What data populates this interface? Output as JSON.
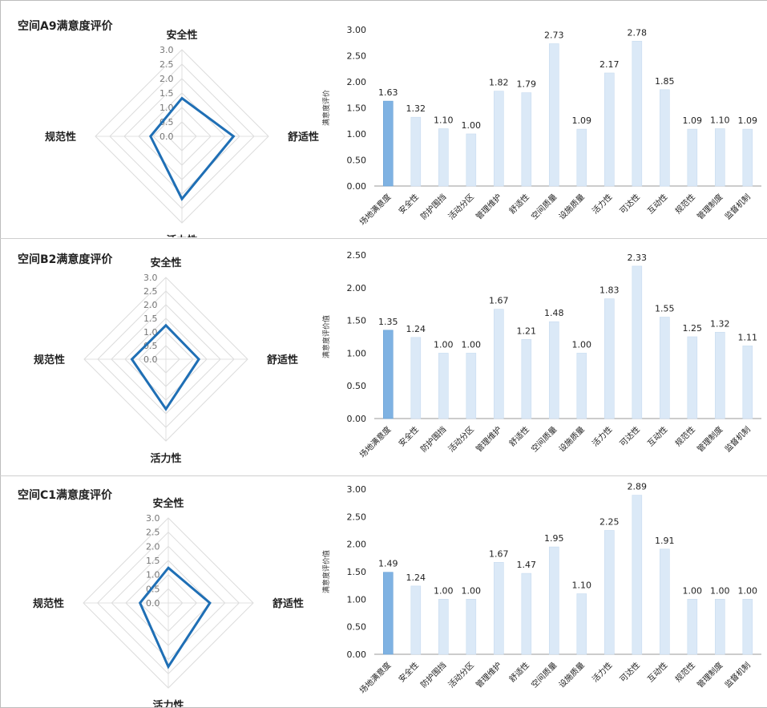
{
  "panels": [
    {
      "title": "空间A9满意度评价",
      "chart_data": [
        {
          "type": "radar",
          "axes": [
            "安全性",
            "舒适性",
            "活力性",
            "规范性"
          ],
          "ticks": [
            "3.0",
            "2.5",
            "2.0",
            "1.5",
            "1.0",
            "0.5",
            "0.0"
          ],
          "rmax": 3.0,
          "values": [
            1.32,
            1.79,
            2.17,
            1.09
          ],
          "color": "#1f6fb5"
        },
        {
          "type": "bar",
          "ylabel": "满意度评价",
          "yticks": [
            "3.00",
            "2.50",
            "2.00",
            "1.50",
            "1.00",
            "0.50",
            "0.00"
          ],
          "ylim": [
            0,
            3.0
          ],
          "categories": [
            "场地满意度",
            "安全性",
            "防护围挡",
            "活动分区",
            "管理维护",
            "舒适性",
            "空间质量",
            "设施质量",
            "活力性",
            "可达性",
            "互动性",
            "规范性",
            "管理制度",
            "监督机制"
          ],
          "values": [
            1.63,
            1.32,
            1.1,
            1.0,
            1.82,
            1.79,
            2.73,
            1.09,
            2.17,
            2.78,
            1.85,
            1.09,
            1.1,
            1.09
          ],
          "labels": [
            "1.63",
            "1.32",
            "1.10",
            "1.00",
            "1.82",
            "1.79",
            "2.73",
            "1.09",
            "2.17",
            "2.78",
            "1.85",
            "1.09",
            "1.10",
            "1.09"
          ]
        }
      ]
    },
    {
      "title": "空间B2满意度评价",
      "chart_data": [
        {
          "type": "radar",
          "axes": [
            "安全性",
            "舒适性",
            "活力性",
            "规范性"
          ],
          "ticks": [
            "3.0",
            "2.5",
            "2.0",
            "1.5",
            "1.0",
            "0.5",
            "0.0"
          ],
          "rmax": 3.0,
          "values": [
            1.24,
            1.21,
            1.83,
            1.25
          ],
          "color": "#1f6fb5"
        },
        {
          "type": "bar",
          "ylabel": "满意度评价值",
          "yticks": [
            "2.50",
            "2.00",
            "1.50",
            "1.00",
            "0.50",
            "0.00"
          ],
          "ylim": [
            0,
            2.5
          ],
          "categories": [
            "场地满意度",
            "安全性",
            "防护围挡",
            "活动分区",
            "管理维护",
            "舒适性",
            "空间质量",
            "设施质量",
            "活力性",
            "可达性",
            "互动性",
            "规范性",
            "管理制度",
            "监督机制"
          ],
          "values": [
            1.35,
            1.24,
            1.0,
            1.0,
            1.67,
            1.21,
            1.48,
            1.0,
            1.83,
            2.33,
            1.55,
            1.25,
            1.32,
            1.11
          ],
          "labels": [
            "1.35",
            "1.24",
            "1.00",
            "1.00",
            "1.67",
            "1.21",
            "1.48",
            "1.00",
            "1.83",
            "2.33",
            "1.55",
            "1.25",
            "1.32",
            "1.11"
          ]
        }
      ]
    },
    {
      "title": "空间C1满意度评价",
      "chart_data": [
        {
          "type": "radar",
          "axes": [
            "安全性",
            "舒适性",
            "活力性",
            "规范性"
          ],
          "ticks": [
            "3.0",
            "2.5",
            "2.0",
            "1.5",
            "1.0",
            "0.5",
            "0.0"
          ],
          "rmax": 3.0,
          "values": [
            1.24,
            1.47,
            2.25,
            1.0
          ],
          "color": "#1f6fb5"
        },
        {
          "type": "bar",
          "ylabel": "满意度评价值",
          "yticks": [
            "3.00",
            "2.50",
            "2.00",
            "1.50",
            "1.00",
            "0.50",
            "0.00"
          ],
          "ylim": [
            0,
            3.0
          ],
          "categories": [
            "场地满意度",
            "安全性",
            "防护围挡",
            "活动分区",
            "管理维护",
            "舒适性",
            "空间质量",
            "设施质量",
            "活力性",
            "可达性",
            "互动性",
            "规范性",
            "管理制度",
            "监督机制"
          ],
          "values": [
            1.49,
            1.24,
            1.0,
            1.0,
            1.67,
            1.47,
            1.95,
            1.1,
            2.25,
            2.89,
            1.91,
            1.0,
            1.0,
            1.0
          ],
          "labels": [
            "1.49",
            "1.24",
            "1.00",
            "1.00",
            "1.67",
            "1.47",
            "1.95",
            "1.10",
            "2.25",
            "2.89",
            "1.91",
            "1.00",
            "1.00",
            "1.00"
          ]
        }
      ]
    }
  ]
}
